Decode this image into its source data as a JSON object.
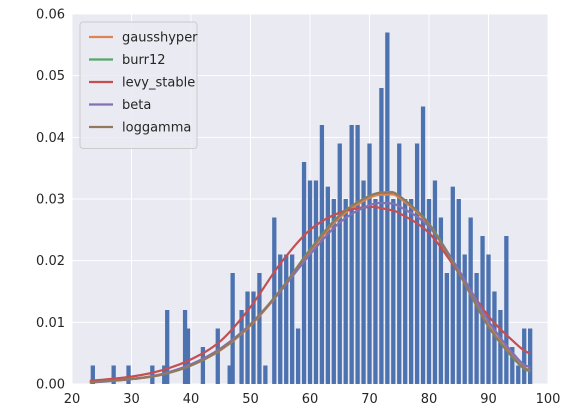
{
  "chart_data": {
    "type": "bar",
    "title": "",
    "xlabel": "",
    "ylabel": "",
    "xlim": [
      20,
      100
    ],
    "ylim": [
      0,
      0.06
    ],
    "xticks": [
      "20",
      "30",
      "40",
      "50",
      "60",
      "70",
      "80",
      "90",
      "100"
    ],
    "yticks": [
      "0.00",
      "0.01",
      "0.02",
      "0.03",
      "0.04",
      "0.05",
      "0.06"
    ],
    "grid": true,
    "legend_position": "top-left",
    "bar_color": "#4c72b0",
    "bins": [
      {
        "x": 23.5,
        "h": 0.003
      },
      {
        "x": 27.0,
        "h": 0.003
      },
      {
        "x": 29.5,
        "h": 0.003
      },
      {
        "x": 33.5,
        "h": 0.003
      },
      {
        "x": 35.5,
        "h": 0.003
      },
      {
        "x": 36.0,
        "h": 0.012
      },
      {
        "x": 39.0,
        "h": 0.012
      },
      {
        "x": 39.5,
        "h": 0.009
      },
      {
        "x": 42.0,
        "h": 0.006
      },
      {
        "x": 44.5,
        "h": 0.009
      },
      {
        "x": 46.5,
        "h": 0.003
      },
      {
        "x": 47.0,
        "h": 0.018
      },
      {
        "x": 48.5,
        "h": 0.012
      },
      {
        "x": 49.5,
        "h": 0.015
      },
      {
        "x": 50.5,
        "h": 0.015
      },
      {
        "x": 51.5,
        "h": 0.018
      },
      {
        "x": 52.5,
        "h": 0.003
      },
      {
        "x": 54.0,
        "h": 0.027
      },
      {
        "x": 55.0,
        "h": 0.021
      },
      {
        "x": 56.0,
        "h": 0.021
      },
      {
        "x": 57.0,
        "h": 0.021
      },
      {
        "x": 58.0,
        "h": 0.009
      },
      {
        "x": 59.0,
        "h": 0.036
      },
      {
        "x": 60.0,
        "h": 0.033
      },
      {
        "x": 61.0,
        "h": 0.033
      },
      {
        "x": 62.0,
        "h": 0.042
      },
      {
        "x": 63.0,
        "h": 0.032
      },
      {
        "x": 64.0,
        "h": 0.03
      },
      {
        "x": 65.0,
        "h": 0.039
      },
      {
        "x": 66.0,
        "h": 0.03
      },
      {
        "x": 67.0,
        "h": 0.042
      },
      {
        "x": 68.0,
        "h": 0.042
      },
      {
        "x": 69.0,
        "h": 0.033
      },
      {
        "x": 70.0,
        "h": 0.039
      },
      {
        "x": 71.0,
        "h": 0.03
      },
      {
        "x": 72.0,
        "h": 0.048
      },
      {
        "x": 73.0,
        "h": 0.057
      },
      {
        "x": 74.0,
        "h": 0.03
      },
      {
        "x": 75.0,
        "h": 0.039
      },
      {
        "x": 76.0,
        "h": 0.03
      },
      {
        "x": 77.0,
        "h": 0.03
      },
      {
        "x": 78.0,
        "h": 0.039
      },
      {
        "x": 79.0,
        "h": 0.045
      },
      {
        "x": 80.0,
        "h": 0.03
      },
      {
        "x": 81.0,
        "h": 0.033
      },
      {
        "x": 82.0,
        "h": 0.027
      },
      {
        "x": 83.0,
        "h": 0.018
      },
      {
        "x": 84.0,
        "h": 0.032
      },
      {
        "x": 85.0,
        "h": 0.03
      },
      {
        "x": 86.0,
        "h": 0.021
      },
      {
        "x": 87.0,
        "h": 0.027
      },
      {
        "x": 88.0,
        "h": 0.018
      },
      {
        "x": 89.0,
        "h": 0.024
      },
      {
        "x": 90.0,
        "h": 0.021
      },
      {
        "x": 91.0,
        "h": 0.015
      },
      {
        "x": 92.0,
        "h": 0.012
      },
      {
        "x": 93.0,
        "h": 0.024
      },
      {
        "x": 94.0,
        "h": 0.006
      },
      {
        "x": 95.0,
        "h": 0.003
      },
      {
        "x": 96.0,
        "h": 0.009
      },
      {
        "x": 97.0,
        "h": 0.009
      }
    ],
    "series": [
      {
        "name": "gausshyper",
        "color": "#dd8452",
        "x": [
          23,
          30,
          35,
          40,
          45,
          50,
          55,
          60,
          65,
          70,
          73,
          75,
          80,
          85,
          90,
          95,
          97
        ],
        "y": [
          0.0003,
          0.0008,
          0.0015,
          0.003,
          0.0055,
          0.0095,
          0.015,
          0.0215,
          0.027,
          0.0302,
          0.0307,
          0.0302,
          0.0258,
          0.018,
          0.0095,
          0.0035,
          0.0022
        ]
      },
      {
        "name": "burr12",
        "color": "#55a868",
        "x": [
          23,
          30,
          35,
          40,
          45,
          50,
          55,
          60,
          65,
          70,
          73,
          75,
          80,
          85,
          90,
          95,
          97
        ],
        "y": [
          0.0003,
          0.0008,
          0.0015,
          0.003,
          0.0056,
          0.0097,
          0.0152,
          0.0218,
          0.0274,
          0.0305,
          0.0311,
          0.0305,
          0.026,
          0.0182,
          0.0093,
          0.0033,
          0.002
        ]
      },
      {
        "name": "levy_stable",
        "color": "#c44e52",
        "x": [
          23,
          30,
          35,
          40,
          45,
          50,
          55,
          60,
          65,
          70,
          73,
          75,
          80,
          85,
          90,
          95,
          97
        ],
        "y": [
          0.0005,
          0.0012,
          0.0022,
          0.004,
          0.007,
          0.0125,
          0.0195,
          0.025,
          0.0278,
          0.0287,
          0.0283,
          0.0277,
          0.0245,
          0.018,
          0.011,
          0.0062,
          0.0049
        ]
      },
      {
        "name": "beta",
        "color": "#8172b3",
        "x": [
          23,
          30,
          35,
          40,
          45,
          50,
          55,
          60,
          65,
          70,
          73,
          75,
          80,
          85,
          90,
          95,
          97
        ],
        "y": [
          0.0002,
          0.0008,
          0.0016,
          0.0032,
          0.0058,
          0.0097,
          0.015,
          0.021,
          0.0262,
          0.029,
          0.0293,
          0.0288,
          0.0255,
          0.0185,
          0.0102,
          0.004,
          0.0027
        ]
      },
      {
        "name": "loggamma",
        "color": "#937860",
        "x": [
          23,
          30,
          35,
          40,
          45,
          50,
          55,
          60,
          65,
          70,
          73,
          75,
          80,
          85,
          90,
          95,
          97
        ],
        "y": [
          0.0003,
          0.0008,
          0.0015,
          0.003,
          0.0056,
          0.0096,
          0.0152,
          0.0217,
          0.0273,
          0.0305,
          0.031,
          0.0305,
          0.0259,
          0.018,
          0.0093,
          0.0034,
          0.0021
        ]
      }
    ]
  }
}
